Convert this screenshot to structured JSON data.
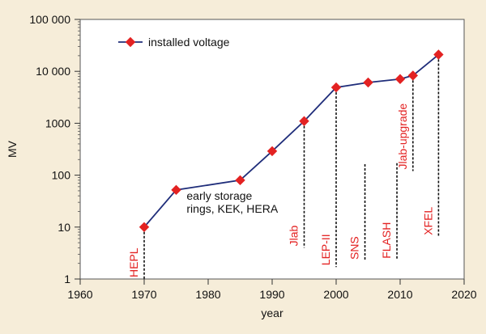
{
  "chart_data": {
    "type": "line",
    "xlabel": "year",
    "ylabel": "MV",
    "xlim": [
      1960,
      2020
    ],
    "xticks": [
      1960,
      1970,
      1980,
      1990,
      2000,
      2010,
      2020
    ],
    "y_scale": "log",
    "ylim": [
      1,
      100000
    ],
    "yticks": [
      1,
      10,
      100,
      1000,
      10000,
      100000
    ],
    "ytick_labels": [
      "1",
      "10",
      "100",
      "1000",
      "10 000",
      "100 000"
    ],
    "grid": false,
    "legend": {
      "position": "top-left",
      "entries": [
        "installed voltage"
      ]
    },
    "series": [
      {
        "name": "installed voltage",
        "color": "#1f2d7a",
        "marker_color": "#e32222",
        "x": [
          1970,
          1975,
          1985,
          1990,
          1995,
          2000,
          2005,
          2010,
          2012,
          2016
        ],
        "y": [
          10,
          52,
          80,
          290,
          1100,
          4900,
          6100,
          7100,
          8300,
          21000
        ]
      }
    ],
    "annotations": [
      {
        "text": "HEPL",
        "x": 1970,
        "y_low": 1,
        "rotated": true,
        "color": "#e32222"
      },
      {
        "text": "Jlab",
        "x": 1995,
        "y_low": 4,
        "rotated": true,
        "color": "#e32222"
      },
      {
        "text": "LEP-II",
        "x": 2000,
        "y_low": 1.7,
        "rotated": true,
        "color": "#e32222"
      },
      {
        "text": "SNS",
        "x": 2004.5,
        "y_low": 2.2,
        "rotated": true,
        "color": "#e32222"
      },
      {
        "text": "FLASH",
        "x": 2009.5,
        "y_low": 2.3,
        "rotated": true,
        "color": "#e32222"
      },
      {
        "text": "Jlab-upgrade",
        "x": 2012,
        "y_low": 120,
        "rotated": true,
        "color": "#e32222"
      },
      {
        "text": "XFEL",
        "x": 2016,
        "y_low": 6.5,
        "rotated": true,
        "color": "#e32222"
      },
      {
        "lines": [
          "early storage",
          "rings, KEK, HERA"
        ],
        "x": 1976,
        "y": 40,
        "rotated": false,
        "color": "#111111"
      }
    ]
  }
}
